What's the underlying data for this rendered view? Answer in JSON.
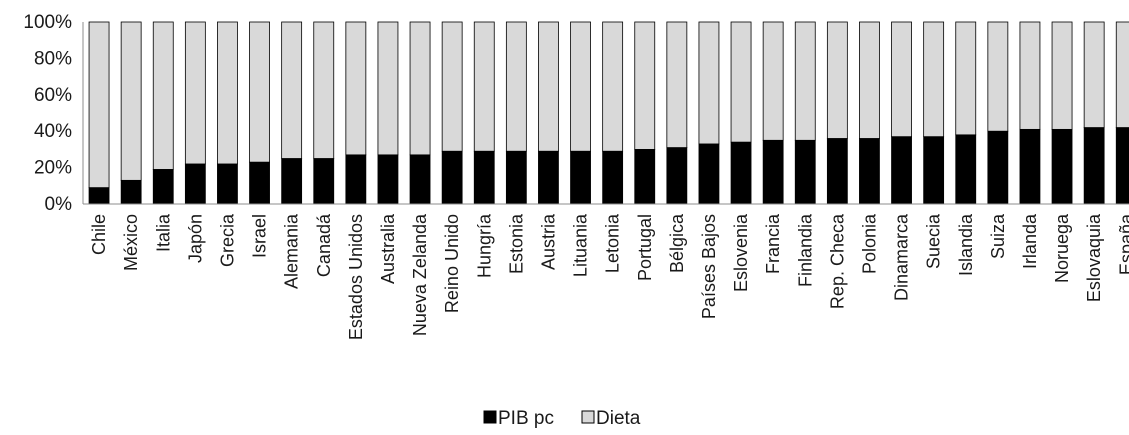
{
  "chart_data": {
    "type": "bar",
    "stacked": true,
    "percent_stacked": true,
    "categories": [
      "Chile",
      "México",
      "Italia",
      "Japón",
      "Grecia",
      "Israel",
      "Alemania",
      "Canadá",
      "Estados Unidos",
      "Australia",
      "Nueva Zelanda",
      "Reino Unido",
      "Hungría",
      "Estonia",
      "Austria",
      "Lituania",
      "Letonia",
      "Portugal",
      "Bélgica",
      "Países Bajos",
      "Eslovenia",
      "Francia",
      "Finlandia",
      "Rep. Checa",
      "Polonia",
      "Dinamarca",
      "Suecia",
      "Islandia",
      "Suiza",
      "Irlanda",
      "Noruega",
      "Eslovaquia",
      "España"
    ],
    "series": [
      {
        "name": "PIB pc",
        "color": "#000000",
        "values": [
          9,
          13,
          19,
          22,
          22,
          23,
          25,
          25,
          27,
          27,
          27,
          29,
          29,
          29,
          29,
          29,
          29,
          30,
          31,
          33,
          34,
          35,
          35,
          36,
          36,
          37,
          37,
          38,
          40,
          41,
          41,
          42,
          42
        ]
      },
      {
        "name": "Dieta",
        "color": "#d9d9d9",
        "values": [
          91,
          87,
          81,
          78,
          78,
          77,
          75,
          75,
          73,
          73,
          73,
          71,
          71,
          71,
          71,
          71,
          71,
          70,
          69,
          67,
          66,
          65,
          65,
          64,
          64,
          63,
          63,
          62,
          60,
          59,
          59,
          58,
          58
        ]
      }
    ],
    "yticks": [
      "0%",
      "20%",
      "40%",
      "60%",
      "80%",
      "100%"
    ],
    "ylim": [
      0,
      100
    ],
    "grid": false,
    "legend_position": "bottom"
  }
}
